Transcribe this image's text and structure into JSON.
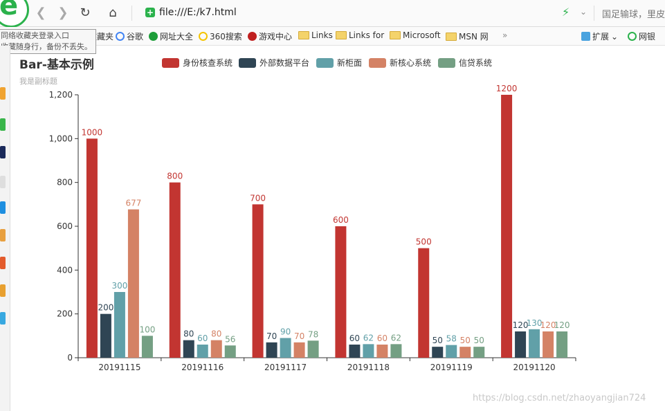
{
  "browser": {
    "url": "file:///E:/k7.html",
    "search_text": "国足输球，里皮",
    "bookmarks": [
      {
        "label": "机收藏夹",
        "icon": "folder-icon"
      },
      {
        "label": "谷歌",
        "icon": "google-icon"
      },
      {
        "label": "网址大全",
        "icon": "web-icon"
      },
      {
        "label": "360搜索",
        "icon": "search360-icon"
      },
      {
        "label": "游戏中心",
        "icon": "game-icon"
      },
      {
        "label": "Links",
        "icon": "folder-icon"
      },
      {
        "label": "Links for",
        "icon": "folder-icon"
      },
      {
        "label": "Microsoft",
        "icon": "folder-icon"
      },
      {
        "label": "MSN 网",
        "icon": "folder-icon"
      }
    ],
    "more_label": "»",
    "extensions_label": "扩展",
    "bank_label": "网银",
    "tooltip_line1": "同络收藏夹登录入口",
    "tooltip_line2": "收藏随身行，备份不丢失。",
    "watermark": "https://blog.csdn.net/zhaoyangjian724",
    "accent_color": "#2bb24c"
  },
  "chart_data": {
    "type": "bar",
    "title": "Bar-基本示例",
    "subtitle": "我是副标题",
    "categories": [
      "20191115",
      "20191116",
      "20191117",
      "20191118",
      "20191119",
      "20191120"
    ],
    "series": [
      {
        "name": "身份核查系统",
        "color": "#c23531",
        "values": [
          1000,
          800,
          700,
          600,
          500,
          1200
        ]
      },
      {
        "name": "外部数据平台",
        "color": "#2f4554",
        "values": [
          200,
          80,
          70,
          60,
          50,
          120
        ]
      },
      {
        "name": "新柜面",
        "color": "#61a0a8",
        "values": [
          300,
          60,
          90,
          62,
          58,
          130
        ]
      },
      {
        "name": "新核心系统",
        "color": "#d48265",
        "values": [
          677,
          80,
          70,
          60,
          50,
          120
        ]
      },
      {
        "name": "信贷系统",
        "color": "#749f83",
        "values": [
          100,
          56,
          78,
          62,
          50,
          120
        ]
      }
    ],
    "y_ticks": [
      "0",
      "200",
      "400",
      "600",
      "800",
      "1,000",
      "1,200"
    ],
    "ylim": [
      0,
      1200
    ],
    "legend_position": "top-center",
    "grid": false
  }
}
